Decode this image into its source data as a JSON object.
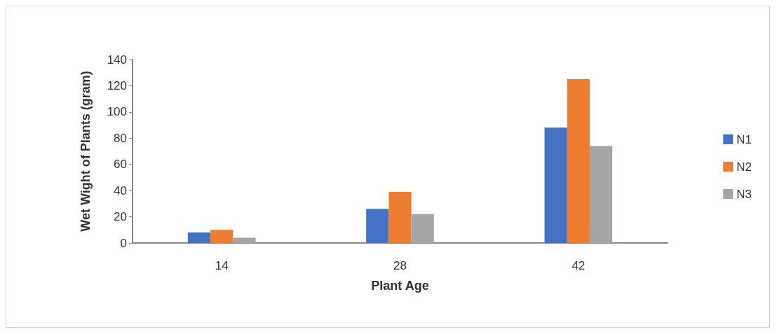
{
  "chart_data": {
    "type": "bar",
    "xlabel": "Plant Age",
    "ylabel": "Wet Wight of Plants (gram)",
    "categories": [
      "14",
      "28",
      "42"
    ],
    "series": [
      {
        "name": "N1",
        "color": "#4472c4",
        "values": [
          8,
          26,
          88
        ]
      },
      {
        "name": "N2",
        "color": "#ed7d31",
        "values": [
          10,
          39,
          125
        ]
      },
      {
        "name": "N3",
        "color": "#a5a5a5",
        "values": [
          4,
          22,
          74
        ]
      }
    ],
    "ylim": [
      0,
      140
    ],
    "yticks": [
      0,
      20,
      40,
      60,
      80,
      100,
      120,
      140
    ],
    "grid": false,
    "legend": "right"
  }
}
